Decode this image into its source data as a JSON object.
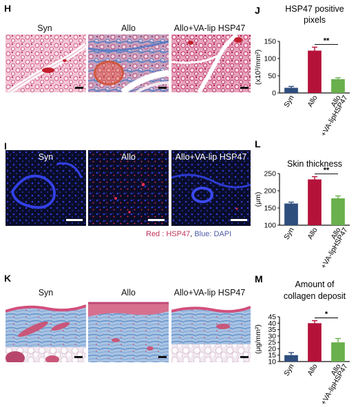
{
  "row_h": {
    "letter": "H",
    "labels": [
      "Syn",
      "Allo",
      "Allo+VA-lip HSP47"
    ]
  },
  "row_i": {
    "letter": "I",
    "labels": [
      "Syn",
      "Allo",
      "Allo+VA-lip HSP47"
    ],
    "legend": {
      "red": "Red : HSP47",
      "sep": ", ",
      "blue": "Blue: DAPI"
    }
  },
  "row_k": {
    "letter": "K",
    "labels": [
      "Syn",
      "Allo",
      "Allo+VA-lip HSP47"
    ]
  },
  "colors": {
    "syn": "#2e4e7e",
    "allo": "#b5123a",
    "va": "#6ab04c",
    "red_text": "#c0305a",
    "blue_text": "#4a5aa8"
  },
  "chart_data": [
    {
      "id": "J",
      "letter": "J",
      "type": "bar",
      "title_lines": [
        "HSP47 positive",
        "pixels"
      ],
      "ylabel": "(x10³/mm²)",
      "categories": [
        "Syn",
        "Allo",
        "Allo +VA-lipHSP47"
      ],
      "category_lines": [
        [
          "Syn"
        ],
        [
          "Allo"
        ],
        [
          "Allo",
          "+VA-lipHSP47"
        ]
      ],
      "values": [
        15,
        123,
        40
      ],
      "errors": [
        4,
        10,
        4
      ],
      "ylim": [
        0,
        150
      ],
      "yticks": [
        0,
        50,
        100,
        150
      ],
      "significance": {
        "from": 1,
        "to": 2,
        "label": "**"
      }
    },
    {
      "id": "L",
      "letter": "L",
      "type": "bar",
      "title_lines": [
        "Skin thickness"
      ],
      "ylabel": "(μm)",
      "categories": [
        "Syn",
        "Allo",
        "Allo +VA-lipHSP47"
      ],
      "category_lines": [
        [
          "Syn"
        ],
        [
          "Allo"
        ],
        [
          "Allo",
          "+VA-lipHSP47"
        ]
      ],
      "values": [
        163,
        233,
        178
      ],
      "errors": [
        4,
        8,
        7
      ],
      "ylim": [
        100,
        250
      ],
      "yticks": [
        100,
        150,
        200,
        250
      ],
      "significance": {
        "from": 1,
        "to": 2,
        "label": "**"
      }
    },
    {
      "id": "M",
      "letter": "M",
      "type": "bar",
      "title_lines": [
        "Amount of",
        "collagen deposit"
      ],
      "ylabel": "(μg/mm²)",
      "categories": [
        "Syn",
        "Allo",
        "Allo +VA-lipHSP47"
      ],
      "category_lines": [
        [
          "Syn"
        ],
        [
          "Allo"
        ],
        [
          "Allo",
          "+VA-lipHSP47"
        ]
      ],
      "values": [
        15,
        40,
        25
      ],
      "errors": [
        2,
        2,
        3
      ],
      "ylim": [
        10,
        45
      ],
      "yticks": [
        10,
        15,
        20,
        25,
        30,
        35,
        40,
        45
      ],
      "significance": {
        "from": 1,
        "to": 2,
        "label": "*"
      }
    }
  ]
}
